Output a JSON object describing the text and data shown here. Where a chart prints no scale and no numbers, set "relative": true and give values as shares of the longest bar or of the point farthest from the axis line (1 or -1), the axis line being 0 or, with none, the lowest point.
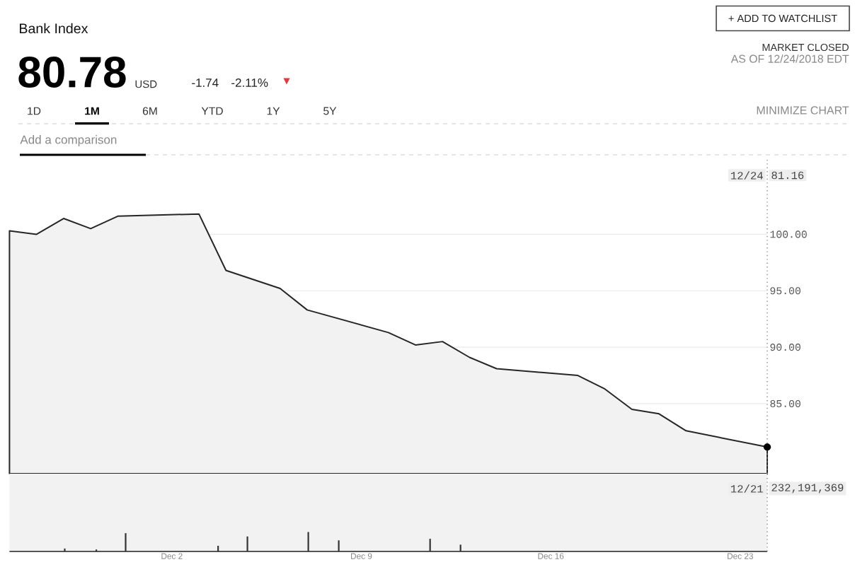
{
  "chart_data": [
    {
      "type": "area",
      "title": "Bank Index",
      "annotations": [
        "80.78",
        "USD",
        "-1.74",
        "-2.11%",
        "▼",
        "+ ADD TO WATCHLIST",
        "MARKET CLOSED",
        "AS OF 12/24/2018 EDT",
        "1D",
        "1M",
        "6M",
        "YTD",
        "1Y",
        "5Y",
        "MINIMIZE CHART",
        "Add a comparison",
        "12/24",
        "81.16"
      ],
      "x": [
        "2018-11-26",
        "2018-11-27",
        "2018-11-28",
        "2018-11-29",
        "2018-11-30",
        "2018-12-03",
        "2018-12-04",
        "2018-12-06",
        "2018-12-07",
        "2018-12-10",
        "2018-12-11",
        "2018-12-12",
        "2018-12-13",
        "2018-12-14",
        "2018-12-17",
        "2018-12-18",
        "2018-12-19",
        "2018-12-20",
        "2018-12-21",
        "2018-12-24"
      ],
      "series": [
        {
          "color": "#262626",
          "values": [
            100.3,
            100.0,
            101.4,
            100.5,
            101.6,
            101.8,
            96.8,
            95.2,
            93.3,
            91.3,
            90.2,
            90.5,
            89.1,
            88.1,
            87.5,
            86.3,
            84.5,
            84.1,
            82.6,
            81.16
          ]
        },
        {
          "type": "scatter",
          "x": [
            "2018-12-24"
          ],
          "values": [
            81.16
          ],
          "color": "#000000",
          "marker": "circle"
        }
      ],
      "xlim": [
        "2018-11-26",
        "2018-12-24"
      ],
      "ylim": [
        78.8,
        106.6
      ],
      "yticks": [
        {
          "value": 85,
          "label": "85.00"
        },
        {
          "value": 90,
          "label": "90.00"
        },
        {
          "value": 95,
          "label": "95.00"
        },
        {
          "value": 100,
          "label": "100.00"
        }
      ],
      "grid": "y",
      "tick_labels": "y",
      "ref_lines": [
        {
          "axis": "x",
          "value": "2018-12-24",
          "color": "#8c8c8c",
          "line_style": "dotted"
        }
      ]
    },
    {
      "type": "bar",
      "relative": true,
      "x": [
        "2018-11-28T01:00",
        "2018-11-29T05:00",
        "2018-11-30T07:00",
        "2018-12-03T17:00",
        "2018-12-04T19:00",
        "2018-12-07T01:00",
        "2018-12-08T04:00",
        "2018-12-11T13:00",
        "2018-12-12T16:00"
      ],
      "values": [
        0.15,
        0.1,
        0.94,
        0.29,
        0.77,
        1,
        0.57,
        0.65,
        0.35
      ],
      "color": "#333333",
      "xlim": [
        "2018-11-26",
        "2018-12-24"
      ],
      "xticks": [
        {
          "value": "2018-12-02",
          "label": "Dec 2"
        },
        {
          "value": "2018-12-09",
          "label": "Dec 9"
        },
        {
          "value": "2018-12-16",
          "label": "Dec 16"
        },
        {
          "value": "2018-12-23",
          "label": "Dec 23"
        }
      ],
      "tick_labels": "x",
      "ref_lines": [
        {
          "axis": "x",
          "value": "2018-12-24",
          "color": "#8c8c8c",
          "line_style": "dotted"
        }
      ],
      "annotations": [
        "12/21",
        "232,191,369"
      ]
    }
  ]
}
